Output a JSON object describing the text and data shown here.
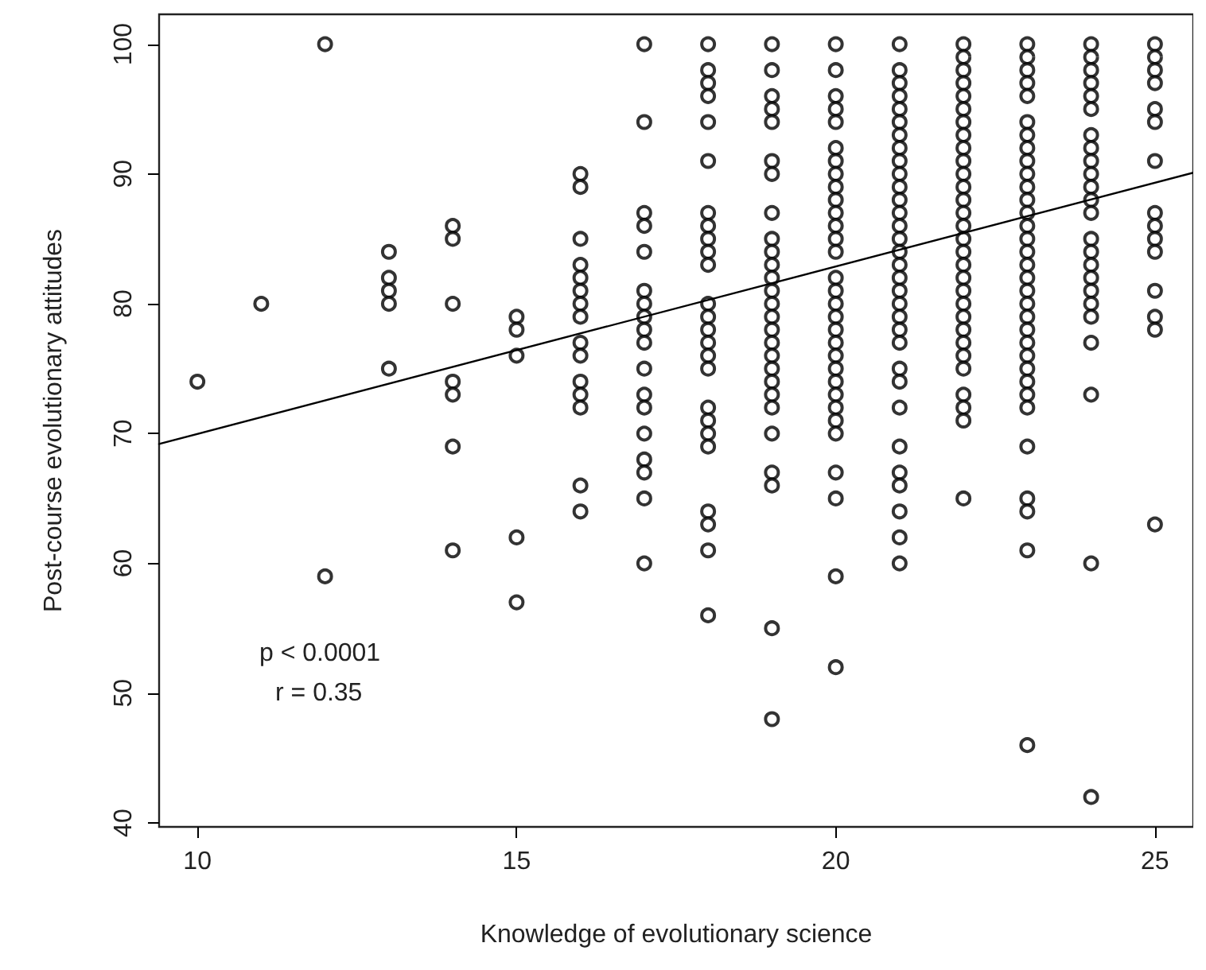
{
  "chart_data": {
    "type": "scatter",
    "xlabel": "Knowledge of evolutionary science",
    "ylabel": "Post-course evolutionary attitudes",
    "xlim": [
      9.4,
      25.6
    ],
    "xticks": [
      10,
      15,
      20,
      25
    ],
    "ylim": [
      39.7,
      102.3
    ],
    "yticks": [
      40,
      50,
      60,
      70,
      80,
      90,
      100
    ],
    "grid": false,
    "marker": "circle",
    "annotations": [
      "p < 0.0001",
      "r = 0.35"
    ],
    "series": [
      {
        "color": "#000000",
        "x": [
          10,
          11,
          12,
          12,
          13,
          13,
          13,
          13,
          13,
          14,
          14,
          14,
          14,
          14,
          14,
          14,
          15,
          15,
          15,
          15,
          15,
          16,
          16,
          16,
          16,
          16,
          16,
          16,
          16,
          16,
          16,
          16,
          16,
          16,
          16,
          16,
          17,
          17,
          17,
          17,
          17,
          17,
          17,
          17,
          17,
          17,
          17,
          17,
          17,
          17,
          17,
          17,
          17,
          17,
          18,
          18,
          18,
          18,
          18,
          18,
          18,
          18,
          18,
          18,
          18,
          18,
          18,
          18,
          18,
          18,
          18,
          18,
          18,
          18,
          18,
          18,
          18,
          18,
          18,
          19,
          19,
          19,
          19,
          19,
          19,
          19,
          19,
          19,
          19,
          19,
          19,
          19,
          19,
          19,
          19,
          19,
          19,
          19,
          19,
          19,
          19,
          19,
          19,
          19,
          19,
          19,
          20,
          20,
          20,
          20,
          20,
          20,
          20,
          20,
          20,
          20,
          20,
          20,
          20,
          20,
          20,
          20,
          20,
          20,
          20,
          20,
          20,
          20,
          20,
          20,
          20,
          20,
          20,
          20,
          20,
          20,
          20,
          21,
          21,
          21,
          21,
          21,
          21,
          21,
          21,
          21,
          21,
          21,
          21,
          21,
          21,
          21,
          21,
          21,
          21,
          21,
          21,
          21,
          21,
          21,
          21,
          21,
          21,
          21,
          21,
          21,
          21,
          21,
          21,
          22,
          22,
          22,
          22,
          22,
          22,
          22,
          22,
          22,
          22,
          22,
          22,
          22,
          22,
          22,
          22,
          22,
          22,
          22,
          22,
          22,
          22,
          22,
          22,
          22,
          22,
          22,
          22,
          22,
          22,
          23,
          23,
          23,
          23,
          23,
          23,
          23,
          23,
          23,
          23,
          23,
          23,
          23,
          23,
          23,
          23,
          23,
          23,
          23,
          23,
          23,
          23,
          23,
          23,
          23,
          23,
          23,
          23,
          23,
          23,
          23,
          23,
          23,
          24,
          24,
          24,
          24,
          24,
          24,
          24,
          24,
          24,
          24,
          24,
          24,
          24,
          24,
          24,
          24,
          24,
          24,
          24,
          24,
          24,
          24,
          24,
          24,
          25,
          25,
          25,
          25,
          25,
          25,
          25,
          25,
          25,
          25,
          25,
          25,
          25,
          25,
          25
        ],
        "values": [
          74,
          80,
          100,
          59,
          84,
          82,
          81,
          80,
          75,
          86,
          85,
          80,
          74,
          73,
          69,
          61,
          79,
          78,
          76,
          62,
          57,
          90,
          89,
          85,
          83,
          82,
          81,
          80,
          79,
          77,
          76,
          74,
          73,
          72,
          66,
          64,
          100,
          94,
          87,
          86,
          84,
          81,
          80,
          79,
          78,
          77,
          75,
          73,
          72,
          70,
          68,
          67,
          65,
          60,
          100,
          98,
          97,
          96,
          94,
          91,
          87,
          86,
          85,
          84,
          83,
          80,
          79,
          78,
          77,
          76,
          75,
          72,
          71,
          70,
          69,
          64,
          63,
          61,
          56,
          100,
          98,
          96,
          95,
          94,
          91,
          90,
          87,
          85,
          84,
          83,
          82,
          81,
          80,
          79,
          78,
          77,
          76,
          75,
          74,
          73,
          72,
          70,
          67,
          66,
          55,
          48,
          100,
          98,
          96,
          95,
          94,
          92,
          91,
          90,
          89,
          88,
          87,
          86,
          85,
          84,
          82,
          81,
          80,
          79,
          78,
          77,
          76,
          75,
          74,
          73,
          72,
          71,
          70,
          67,
          65,
          59,
          52,
          100,
          98,
          97,
          96,
          95,
          94,
          93,
          92,
          91,
          90,
          89,
          88,
          87,
          86,
          85,
          84,
          83,
          82,
          81,
          80,
          79,
          78,
          77,
          75,
          74,
          72,
          69,
          67,
          66,
          64,
          62,
          60,
          100,
          99,
          98,
          97,
          96,
          95,
          94,
          93,
          92,
          91,
          90,
          89,
          88,
          87,
          86,
          85,
          84,
          83,
          82,
          81,
          80,
          79,
          78,
          77,
          76,
          75,
          73,
          72,
          71,
          65,
          100,
          99,
          98,
          97,
          96,
          94,
          93,
          92,
          91,
          90,
          89,
          88,
          87,
          86,
          85,
          84,
          83,
          82,
          81,
          80,
          79,
          78,
          77,
          76,
          75,
          74,
          73,
          72,
          69,
          65,
          64,
          61,
          46,
          100,
          99,
          98,
          97,
          96,
          95,
          93,
          92,
          91,
          90,
          89,
          88,
          87,
          85,
          84,
          83,
          82,
          81,
          80,
          79,
          77,
          73,
          60,
          42,
          100,
          99,
          98,
          97,
          95,
          94,
          91,
          87,
          86,
          85,
          84,
          81,
          79,
          78,
          63
        ]
      },
      {
        "type": "line",
        "color": "#000000",
        "marker": "none",
        "line_style": "solid",
        "x": [
          9.4,
          25.6
        ],
        "values": [
          69.2,
          90.1
        ]
      }
    ]
  }
}
